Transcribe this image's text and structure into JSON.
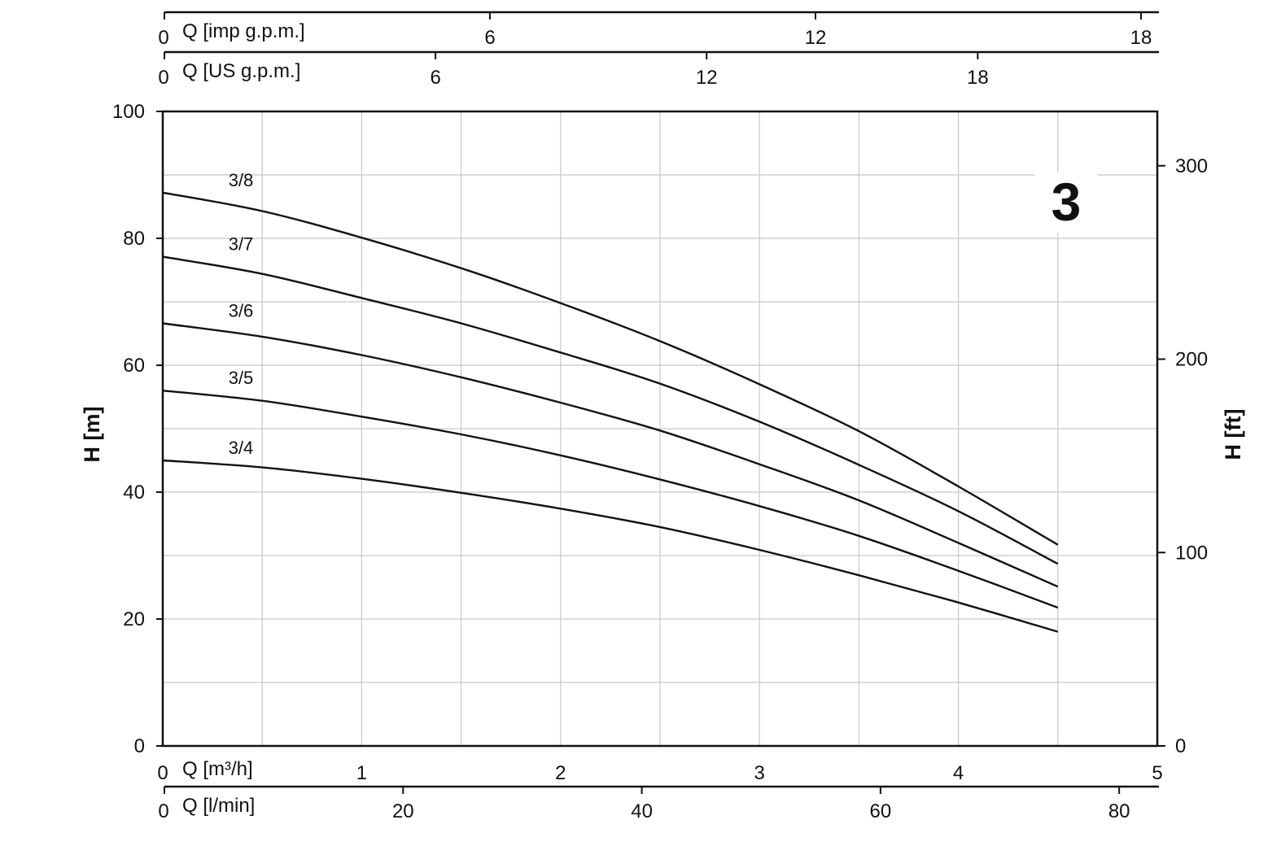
{
  "chart_data": {
    "type": "line",
    "badge": "3",
    "x": [
      0,
      0.5,
      1,
      1.5,
      2,
      2.5,
      3,
      3.5,
      4,
      4.5
    ],
    "series": [
      {
        "name": "3/8",
        "values": [
          87.2,
          84.3,
          80.1,
          75.3,
          69.8,
          63.8,
          57.0,
          49.6,
          40.9,
          31.7
        ]
      },
      {
        "name": "3/7",
        "values": [
          77.1,
          74.4,
          70.6,
          66.6,
          62.0,
          57.1,
          51.1,
          44.3,
          37.0,
          28.7
        ]
      },
      {
        "name": "3/6",
        "values": [
          66.6,
          64.5,
          61.6,
          58.1,
          54.1,
          49.7,
          44.4,
          38.7,
          32.0,
          25.1
        ]
      },
      {
        "name": "3/5",
        "values": [
          56.0,
          54.4,
          51.9,
          49.1,
          45.8,
          42.0,
          37.8,
          33.1,
          27.6,
          21.8
        ]
      },
      {
        "name": "3/4",
        "values": [
          45.0,
          43.9,
          42.1,
          39.9,
          37.4,
          34.5,
          30.9,
          26.9,
          22.6,
          18.0
        ]
      }
    ],
    "axes": {
      "x_bottom": {
        "label": "Q [m³/h]",
        "xlim": [
          0,
          5
        ],
        "ticks": [
          "0",
          "1",
          "2",
          "3",
          "4",
          "5"
        ],
        "values": [
          0,
          1,
          2,
          3,
          4,
          5
        ]
      },
      "x_lpm": {
        "label": "Q [l/min]",
        "xlim": [
          0,
          83.33
        ],
        "ticks": [
          "0",
          "20",
          "40",
          "60",
          "80"
        ],
        "values": [
          0,
          20,
          40,
          60,
          80
        ]
      },
      "x_us": {
        "label": "Q [US g.p.m.]",
        "xlim": [
          0,
          22.01
        ],
        "ticks": [
          "0",
          "6",
          "12",
          "18"
        ],
        "values": [
          0,
          6,
          12,
          18
        ]
      },
      "x_imp": {
        "label": "Q [imp g.p.m.]",
        "xlim": [
          0,
          18.33
        ],
        "ticks": [
          "0",
          "6",
          "12",
          "18"
        ],
        "values": [
          0,
          6,
          12,
          18
        ]
      },
      "y_left": {
        "label": "H [m]",
        "ylim": [
          0,
          100
        ],
        "ticks": [
          "0",
          "20",
          "40",
          "60",
          "80",
          "100"
        ],
        "values": [
          0,
          20,
          40,
          60,
          80,
          100
        ]
      },
      "y_right": {
        "label": "H [ft]",
        "ylim": [
          0,
          328.08
        ],
        "ticks": [
          "0",
          "100",
          "200",
          "300"
        ],
        "values": [
          0,
          100,
          200,
          300
        ]
      }
    },
    "grid": {
      "x_step": 0.5,
      "y_step": 10,
      "visible": true
    }
  }
}
